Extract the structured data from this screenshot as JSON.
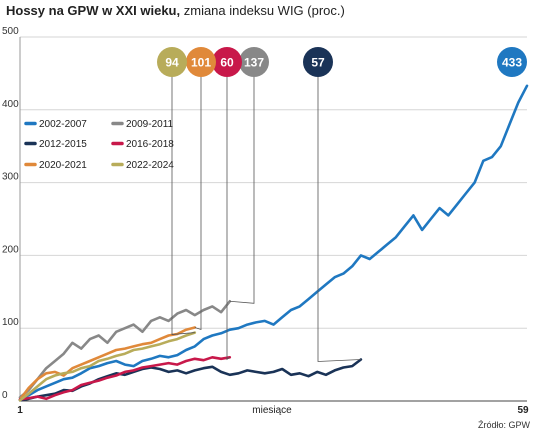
{
  "header": {
    "title": "Hossy na GPW w XXI wieku,",
    "subtitle": "zmiana indeksu WIG (proc.)"
  },
  "source": "Źródło: GPW",
  "chart_data": {
    "type": "line",
    "title": "Hossy na GPW w XXI wieku,",
    "subtitle": "zmiana indeksu WIG (proc.)",
    "xlabel": "miesiące",
    "ylabel": "",
    "x_tick_labels": [
      "1",
      "59"
    ],
    "xlim": [
      1,
      59
    ],
    "ylim": [
      0,
      500
    ],
    "y_ticks": [
      0,
      100,
      200,
      300,
      400,
      500
    ],
    "grid": true,
    "legend_position": "left",
    "series": [
      {
        "name": "2002-2007",
        "color": "#1f78c1",
        "end_label": "433",
        "x": [
          1,
          2,
          3,
          4,
          5,
          6,
          7,
          8,
          9,
          10,
          11,
          12,
          13,
          14,
          15,
          16,
          17,
          18,
          19,
          20,
          21,
          22,
          23,
          24,
          25,
          26,
          27,
          28,
          29,
          30,
          31,
          32,
          33,
          34,
          35,
          36,
          37,
          38,
          39,
          40,
          41,
          42,
          43,
          44,
          45,
          46,
          47,
          48,
          49,
          50,
          51,
          52,
          53,
          54,
          55,
          56,
          57,
          58,
          59
        ],
        "y": [
          2,
          8,
          15,
          20,
          25,
          30,
          32,
          38,
          45,
          48,
          52,
          55,
          50,
          48,
          55,
          58,
          62,
          60,
          63,
          70,
          75,
          85,
          90,
          93,
          98,
          100,
          105,
          108,
          110,
          105,
          115,
          125,
          130,
          140,
          150,
          160,
          170,
          175,
          185,
          200,
          195,
          205,
          215,
          225,
          240,
          255,
          235,
          250,
          265,
          255,
          270,
          285,
          300,
          330,
          335,
          350,
          380,
          410,
          433
        ]
      },
      {
        "name": "2009-2011",
        "color": "#888888",
        "end_label": "137",
        "x": [
          1,
          2,
          3,
          4,
          5,
          6,
          7,
          8,
          9,
          10,
          11,
          12,
          13,
          14,
          15,
          16,
          17,
          18,
          19,
          20,
          21,
          22,
          23,
          24,
          25
        ],
        "y": [
          5,
          15,
          30,
          45,
          55,
          65,
          80,
          72,
          85,
          90,
          80,
          95,
          100,
          105,
          95,
          110,
          115,
          110,
          120,
          125,
          118,
          125,
          130,
          122,
          137
        ]
      },
      {
        "name": "2012-2015",
        "color": "#1a3357",
        "end_label": "57",
        "x": [
          1,
          2,
          3,
          4,
          5,
          6,
          7,
          8,
          9,
          10,
          11,
          12,
          13,
          14,
          15,
          16,
          17,
          18,
          19,
          20,
          21,
          22,
          23,
          24,
          25,
          26,
          27,
          28,
          29,
          30,
          31,
          32,
          33,
          34,
          35,
          36,
          37,
          38,
          39,
          40
        ],
        "y": [
          1,
          3,
          6,
          8,
          10,
          15,
          14,
          20,
          24,
          30,
          34,
          38,
          36,
          40,
          44,
          46,
          44,
          40,
          42,
          38,
          42,
          45,
          47,
          40,
          36,
          38,
          42,
          40,
          38,
          40,
          44,
          36,
          38,
          34,
          40,
          36,
          42,
          46,
          48,
          57
        ]
      },
      {
        "name": "2016-2018",
        "color": "#c8184a",
        "end_label": "60",
        "x": [
          1,
          2,
          3,
          4,
          5,
          6,
          7,
          8,
          9,
          10,
          11,
          12,
          13,
          14,
          15,
          16,
          17,
          18,
          19,
          20,
          21,
          22,
          23,
          24,
          25
        ],
        "y": [
          2,
          4,
          6,
          3,
          8,
          12,
          15,
          22,
          25,
          28,
          32,
          35,
          40,
          42,
          46,
          48,
          50,
          52,
          50,
          55,
          58,
          56,
          60,
          58,
          60
        ]
      },
      {
        "name": "2020-2021",
        "color": "#e0893a",
        "end_label": "101",
        "x": [
          1,
          2,
          3,
          4,
          5,
          6,
          7,
          8,
          9,
          10,
          11,
          12,
          13,
          14,
          15,
          16,
          17,
          18,
          19,
          20,
          21
        ],
        "y": [
          2,
          18,
          30,
          38,
          40,
          35,
          45,
          50,
          55,
          60,
          65,
          70,
          72,
          75,
          78,
          80,
          85,
          90,
          92,
          98,
          101
        ]
      },
      {
        "name": "2022-2024",
        "color": "#b8ac5a",
        "end_label": "94",
        "x": [
          1,
          2,
          3,
          4,
          5,
          6,
          7,
          8,
          9,
          10,
          11,
          12,
          13,
          14,
          15,
          16,
          17,
          18,
          19,
          20,
          21
        ],
        "y": [
          1,
          10,
          20,
          30,
          35,
          38,
          40,
          45,
          48,
          55,
          58,
          62,
          65,
          70,
          72,
          75,
          78,
          82,
          85,
          90,
          94
        ]
      }
    ]
  }
}
